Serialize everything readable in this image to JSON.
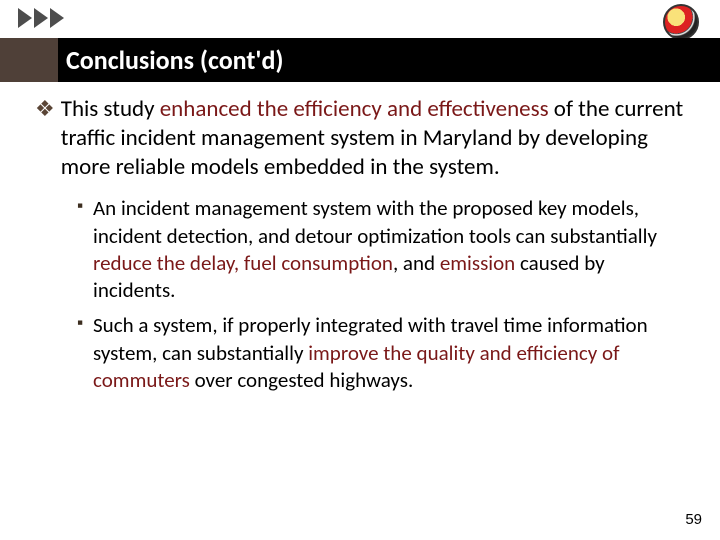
{
  "colors": {
    "title_bar_bg": "#000000",
    "title_left_block": "#4f4038",
    "title_text": "#ffffff",
    "arrow_color": "#4d4d4d",
    "bullet_main_marker": "#5a4536",
    "bullet_sub_marker": "#3d2e20",
    "highlight_red": "#7a1818",
    "body_text": "#000000",
    "background": "#ffffff"
  },
  "typography": {
    "title_fontsize": 26,
    "main_fontsize": 23,
    "sub_fontsize": 21,
    "pagenum_fontsize": 15
  },
  "title": "Conclusions (cont'd)",
  "main_bullet": {
    "pre": "This study ",
    "highlight": "enhanced the efficiency and effectiveness",
    "post": " of the current traffic incident management system in Maryland by developing more reliable models embedded in the system."
  },
  "sub_bullets": [
    {
      "pre": "An incident management system with the proposed key models, incident detection, and detour optimization tools can substantially ",
      "h1": "reduce the delay, fuel consumption",
      "mid1": ", and ",
      "h2": "emission",
      "post": " caused by incidents."
    },
    {
      "pre": "Such a system, if properly integrated with travel time information system, can substantially ",
      "h1": "improve the quality and efficiency of commuters",
      "mid1": " over congested highways.",
      "h2": "",
      "post": ""
    }
  ],
  "page_number": "59"
}
